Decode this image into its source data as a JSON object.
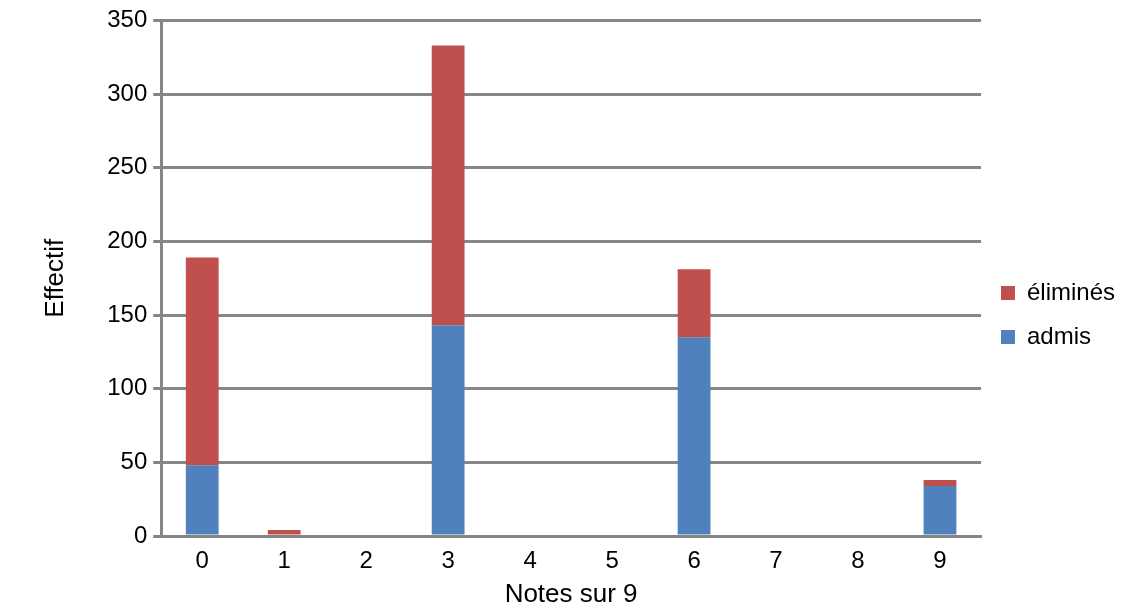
{
  "chart_data": {
    "type": "bar",
    "stacked": true,
    "xlabel": "Notes sur 9",
    "ylabel": "Effectif",
    "categories": [
      "0",
      "1",
      "2",
      "3",
      "4",
      "5",
      "6",
      "7",
      "8",
      "9"
    ],
    "series": [
      {
        "name": "admis",
        "color": "#4f81bd",
        "values": [
          48,
          0,
          0,
          143,
          0,
          0,
          135,
          0,
          0,
          34
        ]
      },
      {
        "name": "éliminés",
        "color": "#c0504d",
        "values": [
          141,
          4,
          0,
          190,
          0,
          0,
          46,
          0,
          0,
          4
        ]
      }
    ],
    "ylim": [
      0,
      350
    ],
    "yticks": [
      0,
      50,
      100,
      150,
      200,
      250,
      300,
      350
    ],
    "grid": "y",
    "legend": "right"
  }
}
